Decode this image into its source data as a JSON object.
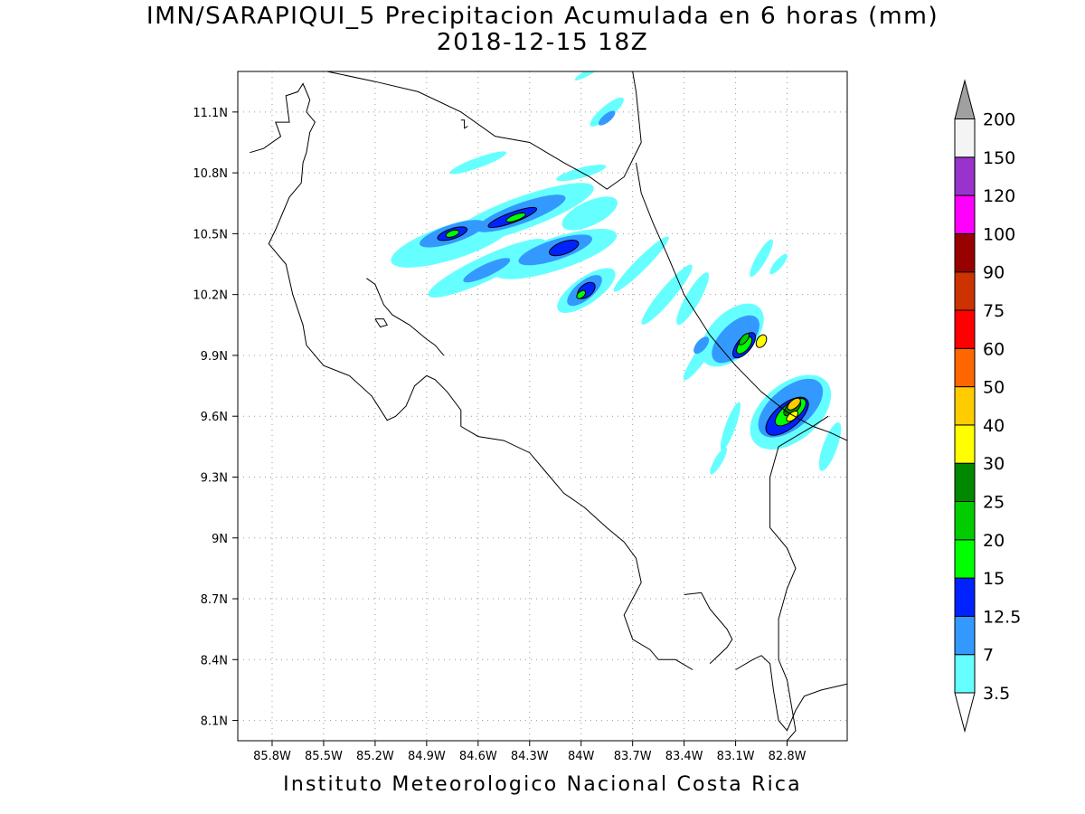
{
  "title": {
    "line1": "IMN/SARAPIQUI_5 Precipitacion Acumulada en 6 horas (mm)",
    "line2": "2018-12-15 18Z"
  },
  "footer": "Instituto Meteorologico Nacional Costa Rica",
  "map": {
    "region": "Costa Rica",
    "lon_range": [
      -86.0,
      -82.45
    ],
    "lat_range": [
      8.0,
      11.3
    ],
    "grid": "dotted",
    "lat_ticks": [
      {
        "value": 11.1,
        "label": "11.1N"
      },
      {
        "value": 10.8,
        "label": "10.8N"
      },
      {
        "value": 10.5,
        "label": "10.5N"
      },
      {
        "value": 10.2,
        "label": "10.2N"
      },
      {
        "value": 9.9,
        "label": "9.9N"
      },
      {
        "value": 9.6,
        "label": "9.6N"
      },
      {
        "value": 9.3,
        "label": "9.3N"
      },
      {
        "value": 9.0,
        "label": "9N"
      },
      {
        "value": 8.7,
        "label": "8.7N"
      },
      {
        "value": 8.4,
        "label": "8.4N"
      },
      {
        "value": 8.1,
        "label": "8.1N"
      }
    ],
    "lon_ticks": [
      {
        "value": -85.8,
        "label": "85.8W"
      },
      {
        "value": -85.5,
        "label": "85.5W"
      },
      {
        "value": -85.2,
        "label": "85.2W"
      },
      {
        "value": -84.9,
        "label": "84.9W"
      },
      {
        "value": -84.6,
        "label": "84.6W"
      },
      {
        "value": -84.3,
        "label": "84.3W"
      },
      {
        "value": -84.0,
        "label": "84W"
      },
      {
        "value": -83.7,
        "label": "83.7W"
      },
      {
        "value": -83.4,
        "label": "83.4W"
      },
      {
        "value": -83.1,
        "label": "83.1W"
      },
      {
        "value": -82.8,
        "label": "82.8W"
      }
    ]
  },
  "colorbar": {
    "unit": "mm",
    "levels": [
      {
        "label": "3.5",
        "color": "#66ffff"
      },
      {
        "label": "7",
        "color": "#3399ff"
      },
      {
        "label": "12.5",
        "color": "#0022ff"
      },
      {
        "label": "15",
        "color": "#00ff00"
      },
      {
        "label": "20",
        "color": "#00cc00"
      },
      {
        "label": "25",
        "color": "#008800"
      },
      {
        "label": "30",
        "color": "#ffff00"
      },
      {
        "label": "40",
        "color": "#ffcc00"
      },
      {
        "label": "50",
        "color": "#ff6600"
      },
      {
        "label": "60",
        "color": "#ff0000"
      },
      {
        "label": "75",
        "color": "#cc3300"
      },
      {
        "label": "90",
        "color": "#990000"
      },
      {
        "label": "100",
        "color": "#ff00ff"
      },
      {
        "label": "120",
        "color": "#9933cc"
      },
      {
        "label": "150",
        "color": "#f4f4f4"
      },
      {
        "label": "200",
        "color": "#a0a0a0"
      }
    ]
  },
  "precip_cells": [
    {
      "lon": -84.75,
      "lat": 10.46,
      "len": 0.75,
      "w": 0.17,
      "angle": -18,
      "level": 0
    },
    {
      "lon": -84.35,
      "lat": 10.6,
      "len": 0.9,
      "w": 0.16,
      "angle": -20,
      "level": 0
    },
    {
      "lon": -84.15,
      "lat": 10.4,
      "len": 0.75,
      "w": 0.16,
      "angle": -18,
      "level": 0
    },
    {
      "lon": -84.55,
      "lat": 10.33,
      "len": 0.75,
      "w": 0.12,
      "angle": -25,
      "level": 0
    },
    {
      "lon": -83.97,
      "lat": 10.22,
      "len": 0.4,
      "w": 0.13,
      "angle": -35,
      "level": 0
    },
    {
      "lon": -83.95,
      "lat": 10.6,
      "len": 0.35,
      "w": 0.12,
      "angle": -25,
      "level": 0
    },
    {
      "lon": -84.6,
      "lat": 10.85,
      "len": 0.35,
      "w": 0.05,
      "angle": -20,
      "level": 0
    },
    {
      "lon": -84.0,
      "lat": 10.8,
      "len": 0.3,
      "w": 0.05,
      "angle": -15,
      "level": 0
    },
    {
      "lon": -83.85,
      "lat": 11.1,
      "len": 0.25,
      "w": 0.06,
      "angle": -40,
      "level": 0
    },
    {
      "lon": -83.95,
      "lat": 11.3,
      "len": 0.2,
      "w": 0.03,
      "angle": -30,
      "level": 0
    },
    {
      "lon": -83.5,
      "lat": 10.2,
      "len": 0.45,
      "w": 0.07,
      "angle": -50,
      "level": 0
    },
    {
      "lon": -83.35,
      "lat": 10.18,
      "len": 0.35,
      "w": 0.07,
      "angle": -60,
      "level": 0
    },
    {
      "lon": -83.65,
      "lat": 10.35,
      "len": 0.45,
      "w": 0.06,
      "angle": -45,
      "level": 0
    },
    {
      "lon": -83.3,
      "lat": 9.9,
      "len": 0.35,
      "w": 0.06,
      "angle": -55,
      "level": 0
    },
    {
      "lon": -83.12,
      "lat": 10.0,
      "len": 0.45,
      "w": 0.22,
      "angle": -45,
      "level": 0
    },
    {
      "lon": -82.78,
      "lat": 9.62,
      "len": 0.55,
      "w": 0.28,
      "angle": -40,
      "level": 0
    },
    {
      "lon": -83.13,
      "lat": 9.55,
      "len": 0.3,
      "w": 0.05,
      "angle": -70,
      "level": 0
    },
    {
      "lon": -83.2,
      "lat": 9.38,
      "len": 0.18,
      "w": 0.04,
      "angle": -60,
      "level": 0
    },
    {
      "lon": -82.55,
      "lat": 9.45,
      "len": 0.3,
      "w": 0.07,
      "angle": -70,
      "level": 0
    },
    {
      "lon": -82.95,
      "lat": 10.38,
      "len": 0.25,
      "w": 0.05,
      "angle": -60,
      "level": 0
    },
    {
      "lon": -82.85,
      "lat": 10.35,
      "len": 0.15,
      "w": 0.04,
      "angle": -50,
      "level": 0
    },
    {
      "lon": -84.75,
      "lat": 10.5,
      "len": 0.4,
      "w": 0.09,
      "angle": -18,
      "level": 1
    },
    {
      "lon": -84.35,
      "lat": 10.6,
      "len": 0.55,
      "w": 0.1,
      "angle": -20,
      "level": 1
    },
    {
      "lon": -84.15,
      "lat": 10.42,
      "len": 0.45,
      "w": 0.1,
      "angle": -18,
      "level": 1
    },
    {
      "lon": -83.98,
      "lat": 10.22,
      "len": 0.25,
      "w": 0.09,
      "angle": -40,
      "level": 1
    },
    {
      "lon": -84.55,
      "lat": 10.32,
      "len": 0.3,
      "w": 0.06,
      "angle": -25,
      "level": 1
    },
    {
      "lon": -83.1,
      "lat": 9.98,
      "len": 0.35,
      "w": 0.15,
      "angle": -45,
      "level": 1
    },
    {
      "lon": -82.78,
      "lat": 9.64,
      "len": 0.45,
      "w": 0.2,
      "angle": -40,
      "level": 1
    },
    {
      "lon": -83.3,
      "lat": 9.95,
      "len": 0.12,
      "w": 0.05,
      "angle": -50,
      "level": 1
    },
    {
      "lon": -83.85,
      "lat": 11.07,
      "len": 0.12,
      "w": 0.04,
      "angle": -40,
      "level": 1
    },
    {
      "lon": -84.75,
      "lat": 10.5,
      "len": 0.18,
      "w": 0.05,
      "angle": -18,
      "level": 2
    },
    {
      "lon": -84.4,
      "lat": 10.58,
      "len": 0.3,
      "w": 0.05,
      "angle": -20,
      "level": 2
    },
    {
      "lon": -84.1,
      "lat": 10.43,
      "len": 0.18,
      "w": 0.06,
      "angle": -20,
      "level": 2
    },
    {
      "lon": -83.97,
      "lat": 10.22,
      "len": 0.12,
      "w": 0.06,
      "angle": -40,
      "level": 2
    },
    {
      "lon": -83.05,
      "lat": 9.95,
      "len": 0.18,
      "w": 0.07,
      "angle": -50,
      "level": 2
    },
    {
      "lon": -82.8,
      "lat": 9.6,
      "len": 0.3,
      "w": 0.12,
      "angle": -40,
      "level": 2
    },
    {
      "lon": -84.75,
      "lat": 10.5,
      "len": 0.08,
      "w": 0.03,
      "angle": -18,
      "level": 3
    },
    {
      "lon": -84.38,
      "lat": 10.58,
      "len": 0.12,
      "w": 0.03,
      "angle": -20,
      "level": 3
    },
    {
      "lon": -84.0,
      "lat": 10.2,
      "len": 0.06,
      "w": 0.03,
      "angle": -40,
      "level": 3
    },
    {
      "lon": -83.05,
      "lat": 9.95,
      "len": 0.12,
      "w": 0.05,
      "angle": -50,
      "level": 3
    },
    {
      "lon": -82.78,
      "lat": 9.62,
      "len": 0.22,
      "w": 0.08,
      "angle": -40,
      "level": 3
    },
    {
      "lon": -83.05,
      "lat": 9.98,
      "len": 0.08,
      "w": 0.03,
      "angle": -50,
      "level": 4
    },
    {
      "lon": -82.77,
      "lat": 9.64,
      "len": 0.12,
      "w": 0.05,
      "angle": -40,
      "level": 5
    },
    {
      "lon": -82.95,
      "lat": 9.97,
      "len": 0.08,
      "w": 0.045,
      "angle": -60,
      "level": 6
    },
    {
      "lon": -82.76,
      "lat": 9.66,
      "len": 0.09,
      "w": 0.04,
      "angle": -40,
      "level": 7
    },
    {
      "lon": -82.77,
      "lat": 9.6,
      "len": 0.08,
      "w": 0.035,
      "angle": -40,
      "level": 6
    }
  ],
  "coastlines": [
    [
      [
        -85.93,
        10.9
      ],
      [
        -85.85,
        10.92
      ],
      [
        -85.75,
        10.98
      ],
      [
        -85.78,
        11.05
      ],
      [
        -85.7,
        11.05
      ],
      [
        -85.72,
        11.18
      ],
      [
        -85.65,
        11.2
      ],
      [
        -85.62,
        11.24
      ],
      [
        -85.58,
        11.16
      ],
      [
        -85.6,
        11.1
      ],
      [
        -85.55,
        11.05
      ],
      [
        -85.58,
        11.0
      ],
      [
        -85.6,
        10.9
      ],
      [
        -85.62,
        10.85
      ],
      [
        -85.63,
        10.75
      ],
      [
        -85.7,
        10.68
      ],
      [
        -85.75,
        10.58
      ],
      [
        -85.78,
        10.52
      ],
      [
        -85.82,
        10.45
      ],
      [
        -85.72,
        10.35
      ],
      [
        -85.68,
        10.2
      ],
      [
        -85.62,
        10.05
      ],
      [
        -85.6,
        9.95
      ],
      [
        -85.5,
        9.85
      ],
      [
        -85.35,
        9.8
      ],
      [
        -85.22,
        9.7
      ],
      [
        -85.13,
        9.58
      ],
      [
        -85.08,
        9.6
      ],
      [
        -85.02,
        9.65
      ],
      [
        -84.97,
        9.75
      ],
      [
        -84.9,
        9.8
      ],
      [
        -84.85,
        9.78
      ],
      [
        -84.78,
        9.72
      ],
      [
        -84.7,
        9.63
      ],
      [
        -84.7,
        9.55
      ],
      [
        -84.6,
        9.5
      ],
      [
        -84.45,
        9.48
      ],
      [
        -84.3,
        9.42
      ],
      [
        -84.2,
        9.32
      ],
      [
        -84.1,
        9.22
      ],
      [
        -83.98,
        9.15
      ],
      [
        -83.85,
        9.05
      ],
      [
        -83.75,
        8.98
      ],
      [
        -83.68,
        8.9
      ],
      [
        -83.65,
        8.78
      ],
      [
        -83.7,
        8.7
      ],
      [
        -83.75,
        8.62
      ],
      [
        -83.7,
        8.5
      ],
      [
        -83.6,
        8.45
      ],
      [
        -83.55,
        8.4
      ],
      [
        -83.45,
        8.4
      ],
      [
        -83.35,
        8.35
      ]
    ],
    [
      [
        -83.4,
        8.72
      ],
      [
        -83.3,
        8.73
      ],
      [
        -83.25,
        8.65
      ],
      [
        -83.2,
        8.6
      ],
      [
        -83.15,
        8.55
      ],
      [
        -83.12,
        8.5
      ],
      [
        -83.15,
        8.46
      ],
      [
        -83.2,
        8.42
      ],
      [
        -83.25,
        8.38
      ]
    ],
    [
      [
        -83.1,
        8.35
      ],
      [
        -83.0,
        8.4
      ],
      [
        -82.95,
        8.42
      ],
      [
        -82.9,
        8.38
      ],
      [
        -82.88,
        8.25
      ],
      [
        -82.85,
        8.1
      ],
      [
        -82.8,
        8.05
      ],
      [
        -82.75,
        8.15
      ],
      [
        -82.7,
        8.22
      ],
      [
        -82.6,
        8.25
      ],
      [
        -82.45,
        8.28
      ]
    ],
    [
      [
        -85.25,
        10.28
      ],
      [
        -85.2,
        10.25
      ],
      [
        -85.15,
        10.15
      ],
      [
        -85.1,
        10.1
      ],
      [
        -85.0,
        10.05
      ],
      [
        -84.9,
        9.98
      ],
      [
        -84.85,
        9.95
      ],
      [
        -84.8,
        9.9
      ]
    ],
    [
      [
        -85.2,
        10.08
      ],
      [
        -85.15,
        10.08
      ],
      [
        -85.13,
        10.05
      ],
      [
        -85.17,
        10.04
      ],
      [
        -85.2,
        10.08
      ]
    ],
    [
      [
        -84.7,
        11.06
      ],
      [
        -84.68,
        11.06
      ],
      [
        -84.68,
        11.02
      ],
      [
        -84.66,
        11.03
      ]
    ],
    [
      [
        -85.48,
        11.3
      ],
      [
        -85.2,
        11.25
      ],
      [
        -84.95,
        11.2
      ],
      [
        -84.7,
        11.1
      ],
      [
        -84.5,
        10.98
      ],
      [
        -84.3,
        10.95
      ],
      [
        -84.1,
        10.85
      ],
      [
        -83.95,
        10.78
      ],
      [
        -83.85,
        10.72
      ],
      [
        -83.75,
        10.78
      ],
      [
        -83.65,
        10.95
      ],
      [
        -83.68,
        11.2
      ],
      [
        -83.7,
        11.3
      ]
    ],
    [
      [
        -83.68,
        10.85
      ],
      [
        -83.65,
        10.7
      ],
      [
        -83.58,
        10.55
      ],
      [
        -83.5,
        10.4
      ],
      [
        -83.4,
        10.2
      ],
      [
        -83.25,
        10.0
      ],
      [
        -83.1,
        9.85
      ],
      [
        -82.95,
        9.72
      ],
      [
        -82.8,
        9.62
      ],
      [
        -82.65,
        9.55
      ],
      [
        -82.55,
        9.52
      ],
      [
        -82.45,
        9.48
      ]
    ],
    [
      [
        -82.56,
        9.6
      ],
      [
        -82.65,
        9.55
      ],
      [
        -82.85,
        9.45
      ],
      [
        -82.9,
        9.3
      ],
      [
        -82.9,
        9.1
      ],
      [
        -82.9,
        9.05
      ],
      [
        -82.8,
        8.95
      ],
      [
        -82.75,
        8.85
      ],
      [
        -82.8,
        8.75
      ],
      [
        -82.85,
        8.6
      ],
      [
        -82.85,
        8.4
      ],
      [
        -82.8,
        8.3
      ],
      [
        -82.75,
        8.05
      ],
      [
        -82.8,
        8.0
      ]
    ]
  ]
}
